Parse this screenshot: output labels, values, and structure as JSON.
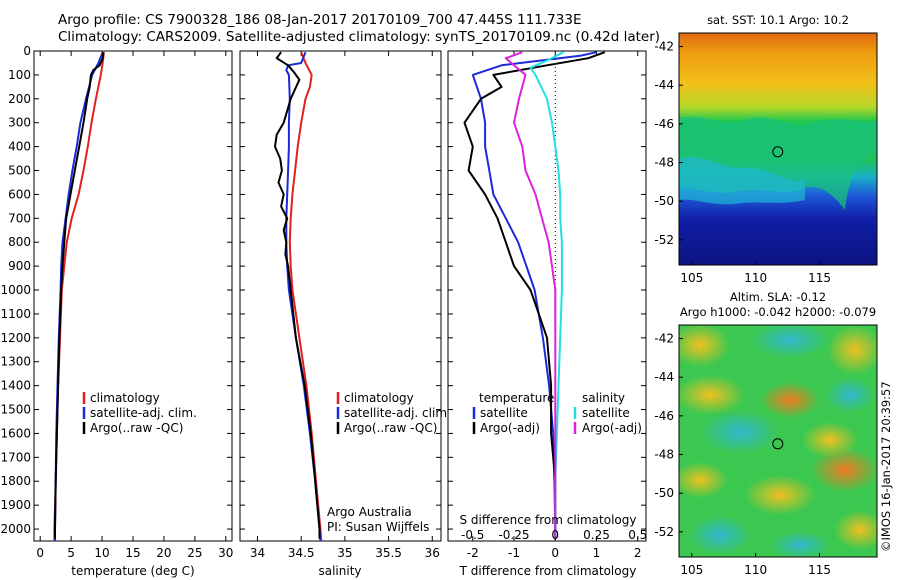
{
  "header": {
    "line1": "Argo profile: CS 7900328_186 08-Jan-2017 20170109_700 47.445S 111.733E",
    "line2": "Climatology: CARS2009. Satellite-adjusted climatology: synTS_20170109.nc (0.42d later)"
  },
  "credit": "©IMOS 16-Jan-2017 20:39:57",
  "sst_map": {
    "title": "sat. SST: 10.1  Argo: 10.2",
    "lat_ticks": [
      "-42",
      "-44",
      "-46",
      "-48",
      "-50",
      "-52"
    ],
    "lon_ticks": [
      "105",
      "110",
      "115"
    ],
    "marker": {
      "lon": 111.733,
      "lat": -47.445
    }
  },
  "sla_map": {
    "title1": "Altim. SLA: -0.12",
    "title2": "Argo h1000: -0.042  h2000: -0.079",
    "lat_ticks": [
      "-42",
      "-44",
      "-46",
      "-48",
      "-50",
      "-52"
    ],
    "lon_ticks": [
      "105",
      "110",
      "115"
    ],
    "marker": {
      "lon": 111.733,
      "lat": -47.445
    }
  },
  "colors": {
    "climatology": "#e02020",
    "satellite": "#1a2ad8",
    "argo": "#000000",
    "sat_salinity": "#22e0e0",
    "argo_salinity": "#e020e0"
  },
  "chart_data": [
    {
      "type": "line",
      "panel": "temperature",
      "xlabel": "temperature (deg C)",
      "xlim": [
        -1,
        31
      ],
      "ylim": [
        0,
        2050
      ],
      "xticks": [
        "0",
        "5",
        "10",
        "15",
        "20",
        "25",
        "30"
      ],
      "yticks": [
        "0",
        "100",
        "200",
        "300",
        "400",
        "500",
        "600",
        "700",
        "800",
        "900",
        "1000",
        "1100",
        "1200",
        "1300",
        "1400",
        "1500",
        "1600",
        "1700",
        "1800",
        "1900",
        "2000"
      ],
      "legend": [
        "climatology",
        "satellite-adj. clim.",
        "Argo(..raw -QC)"
      ],
      "series": [
        {
          "name": "climatology",
          "depth": [
            5,
            50,
            100,
            200,
            300,
            400,
            500,
            600,
            700,
            800,
            900,
            1000,
            1200,
            1400,
            1600,
            1800,
            2000,
            2050
          ],
          "values": [
            10.3,
            10.1,
            9.8,
            9.0,
            8.3,
            7.7,
            7.0,
            6.2,
            5.1,
            4.3,
            3.9,
            3.5,
            3.2,
            2.9,
            2.7,
            2.5,
            2.3,
            2.3
          ]
        },
        {
          "name": "satellite-adj. clim.",
          "depth": [
            5,
            50,
            100,
            200,
            300,
            400,
            500,
            600,
            700,
            800,
            900,
            1000,
            1200,
            1400,
            1600,
            1800,
            2000,
            2050
          ],
          "values": [
            10.1,
            9.4,
            8.4,
            7.4,
            6.5,
            5.9,
            5.2,
            4.6,
            4.1,
            3.6,
            3.4,
            3.3,
            3.0,
            2.8,
            2.6,
            2.5,
            2.4,
            2.4
          ]
        },
        {
          "name": "Argo(..raw -QC)",
          "depth": [
            5,
            30,
            60,
            80,
            100,
            150,
            200,
            300,
            400,
            500,
            600,
            700,
            800,
            900,
            1000,
            1200,
            1400,
            1600,
            1800,
            2000,
            2040
          ],
          "values": [
            10.2,
            10.1,
            9.6,
            8.6,
            8.2,
            8.0,
            7.6,
            7.0,
            6.3,
            5.6,
            4.9,
            4.2,
            3.9,
            3.6,
            3.4,
            3.1,
            2.9,
            2.7,
            2.5,
            2.4,
            2.4
          ]
        }
      ]
    },
    {
      "type": "line",
      "panel": "salinity",
      "xlabel": "salinity",
      "xlim": [
        33.8,
        36.1
      ],
      "ylim": [
        0,
        2050
      ],
      "xticks": [
        "34",
        "34.5",
        "35",
        "35.5",
        "36"
      ],
      "legend": [
        "climatology",
        "satellite-adj. clim.",
        "Argo(..raw -QC)"
      ],
      "annotation": [
        "Argo Australia",
        "PI: Susan Wijffels"
      ],
      "series": [
        {
          "name": "climatology",
          "depth": [
            5,
            50,
            100,
            150,
            200,
            300,
            400,
            500,
            600,
            700,
            800,
            900,
            1000,
            1200,
            1400,
            1600,
            1800,
            2000,
            2050
          ],
          "values": [
            34.5,
            34.55,
            34.62,
            34.6,
            34.55,
            34.5,
            34.46,
            34.43,
            34.4,
            34.38,
            34.37,
            34.38,
            34.4,
            34.48,
            34.56,
            34.62,
            34.67,
            34.72,
            34.73
          ]
        },
        {
          "name": "satellite-adj. clim.",
          "depth": [
            5,
            50,
            60,
            80,
            100,
            200,
            300,
            400,
            500,
            600,
            700,
            800,
            900,
            1000,
            1200,
            1400,
            1600,
            1800,
            2000,
            2050
          ],
          "values": [
            34.55,
            34.5,
            34.35,
            34.33,
            34.36,
            34.37,
            34.36,
            34.36,
            34.35,
            34.34,
            34.33,
            34.33,
            34.34,
            34.36,
            34.44,
            34.53,
            34.6,
            34.66,
            34.71,
            34.72
          ]
        },
        {
          "name": "Argo(..raw -QC)",
          "depth": [
            5,
            30,
            60,
            90,
            120,
            200,
            250,
            300,
            350,
            400,
            450,
            500,
            550,
            600,
            650,
            700,
            750,
            800,
            850,
            900,
            1000,
            1200,
            1400,
            1600,
            1800,
            2000,
            2040
          ],
          "values": [
            34.27,
            34.22,
            34.35,
            34.42,
            34.48,
            34.38,
            34.34,
            34.3,
            34.22,
            34.2,
            34.26,
            34.28,
            34.24,
            34.3,
            34.27,
            34.34,
            34.3,
            34.33,
            34.32,
            34.35,
            34.38,
            34.44,
            34.54,
            34.61,
            34.66,
            34.71,
            34.71
          ]
        }
      ]
    },
    {
      "type": "line",
      "panel": "difference",
      "xlabel": "T difference from climatology",
      "xlabel2": "S difference from climatology",
      "xlim": [
        -2.6,
        2.2
      ],
      "ylim": [
        0,
        2050
      ],
      "xticks": [
        "-2",
        "-1",
        "0",
        "1",
        "2"
      ],
      "xticks_s": [
        "-0.5",
        "-0.25",
        "0",
        "0.25",
        "0.5"
      ],
      "legend_title_t": "temperature",
      "legend_title_s": "salinity",
      "legend_t": [
        "satellite",
        "Argo(-adj)"
      ],
      "legend_s": [
        "satellite",
        "Argo(-adj)"
      ],
      "series": [
        {
          "name": "temperature satellite",
          "depth": [
            5,
            20,
            60,
            100,
            200,
            300,
            400,
            500,
            600,
            700,
            800,
            900,
            1000,
            1200,
            1400,
            1600,
            1800,
            2000,
            2040
          ],
          "values": [
            1.0,
            0.6,
            -1.3,
            -2.0,
            -1.8,
            -1.7,
            -1.7,
            -1.6,
            -1.5,
            -1.2,
            -0.9,
            -0.7,
            -0.5,
            -0.3,
            -0.15,
            -0.05,
            -0.02,
            0.0,
            0.0
          ]
        },
        {
          "name": "temperature Argo(-adj)",
          "depth": [
            5,
            30,
            60,
            100,
            150,
            200,
            300,
            400,
            500,
            600,
            700,
            800,
            900,
            1000,
            1100,
            1200,
            1400,
            1600,
            1800,
            2000,
            2040
          ],
          "values": [
            1.2,
            0.8,
            -0.2,
            -1.5,
            -1.3,
            -1.8,
            -2.2,
            -2.0,
            -2.1,
            -1.7,
            -1.4,
            -1.2,
            -1.0,
            -0.6,
            -0.4,
            -0.2,
            -0.1,
            -0.1,
            0.0,
            0.0,
            0.0
          ]
        },
        {
          "name": "salinity satellite",
          "depth": [
            5,
            40,
            70,
            100,
            200,
            300,
            400,
            500,
            600,
            700,
            800,
            900,
            1000,
            1200,
            1400,
            1600,
            1800,
            2000,
            2040
          ],
          "values": [
            0.05,
            -0.05,
            -0.15,
            -0.12,
            -0.05,
            -0.02,
            0.0,
            0.02,
            0.03,
            0.03,
            0.04,
            0.04,
            0.04,
            0.03,
            0.02,
            0.01,
            0.0,
            0.0,
            0.0
          ]
        },
        {
          "name": "salinity Argo(-adj)",
          "depth": [
            5,
            30,
            60,
            100,
            200,
            300,
            400,
            500,
            600,
            700,
            800,
            900,
            1000,
            1200,
            1400,
            1600,
            1800,
            2000,
            2040
          ],
          "values": [
            -0.2,
            -0.3,
            -0.25,
            -0.18,
            -0.22,
            -0.25,
            -0.2,
            -0.18,
            -0.12,
            -0.08,
            -0.04,
            -0.02,
            0.0,
            0.0,
            0.0,
            0.0,
            0.0,
            0.0,
            0.0
          ]
        }
      ]
    }
  ]
}
